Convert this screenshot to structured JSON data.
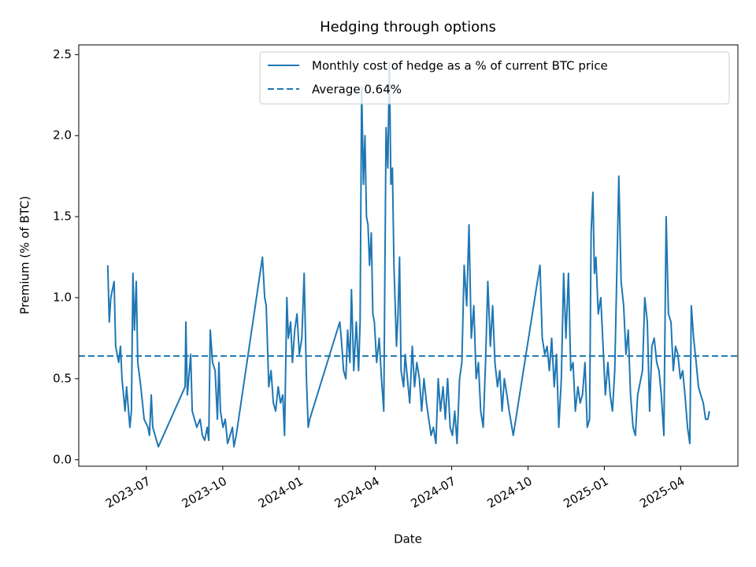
{
  "chart_data": {
    "type": "line",
    "title": "Hedging through options",
    "xlabel": "Date",
    "ylabel": "Premium (% of BTC)",
    "xlim": [
      -2.66,
      23.25
    ],
    "ylim": [
      -0.04,
      2.56
    ],
    "xticks": [
      {
        "value": 0,
        "label": "2023-07"
      },
      {
        "value": 3,
        "label": "2023-10"
      },
      {
        "value": 6,
        "label": "2024-01"
      },
      {
        "value": 9,
        "label": "2024-04"
      },
      {
        "value": 12,
        "label": "2024-07"
      },
      {
        "value": 15,
        "label": "2024-10"
      },
      {
        "value": 18,
        "label": "2025-01"
      },
      {
        "value": 21,
        "label": "2025-04"
      }
    ],
    "yticks": [
      {
        "value": 0,
        "label": "0.0"
      },
      0.5,
      {
        "value": 1,
        "label": "1.0"
      },
      1.5,
      {
        "value": 2,
        "label": "2.0"
      },
      2.5
    ],
    "legend": "upper right",
    "grid": false,
    "x": [
      -1.52,
      -1.46,
      -1.4,
      -1.27,
      -1.21,
      -1.09,
      -1.02,
      -0.96,
      -0.84,
      -0.78,
      -0.65,
      -0.59,
      -0.53,
      -0.47,
      -0.4,
      -0.34,
      -0.22,
      -0.09,
      0.06,
      0.12,
      0.19,
      0.25,
      0.47,
      1.52,
      1.55,
      1.61,
      1.74,
      1.8,
      1.98,
      2.11,
      2.2,
      2.29,
      2.39,
      2.45,
      2.51,
      2.6,
      2.7,
      2.79,
      2.85,
      2.91,
      3.01,
      3.1,
      3.19,
      3.29,
      3.38,
      3.44,
      3.53,
      4.56,
      4.65,
      4.71,
      4.81,
      4.9,
      4.99,
      5.08,
      5.18,
      5.27,
      5.36,
      5.43,
      5.52,
      5.58,
      5.67,
      5.74,
      5.83,
      5.92,
      6.01,
      6.11,
      6.2,
      6.29,
      6.36,
      6.42,
      7.6,
      7.66,
      7.75,
      7.84,
      7.91,
      8.0,
      8.06,
      8.15,
      8.25,
      8.34,
      8.4,
      8.46,
      8.53,
      8.59,
      8.65,
      8.71,
      8.77,
      8.84,
      8.9,
      8.96,
      9.05,
      9.15,
      9.24,
      9.33,
      9.42,
      9.49,
      9.55,
      9.61,
      9.67,
      9.73,
      9.83,
      9.89,
      9.95,
      10.01,
      10.11,
      10.17,
      10.26,
      10.35,
      10.45,
      10.54,
      10.63,
      10.73,
      10.82,
      10.91,
      11.01,
      11.1,
      11.19,
      11.28,
      11.38,
      11.47,
      11.56,
      11.66,
      11.75,
      11.84,
      11.94,
      12.03,
      12.12,
      12.21,
      12.31,
      12.4,
      12.49,
      12.59,
      12.68,
      12.77,
      12.87,
      12.96,
      13.05,
      13.14,
      13.24,
      13.33,
      13.42,
      13.52,
      13.61,
      13.7,
      13.8,
      13.89,
      13.98,
      14.07,
      14.17,
      14.26,
      14.42,
      15.47,
      15.56,
      15.66,
      15.75,
      15.84,
      15.93,
      16.03,
      16.12,
      16.21,
      16.31,
      16.4,
      16.49,
      16.59,
      16.68,
      16.77,
      16.86,
      16.96,
      17.05,
      17.14,
      17.24,
      17.33,
      17.42,
      17.48,
      17.55,
      17.61,
      17.67,
      17.76,
      17.86,
      17.95,
      18.04,
      18.14,
      18.23,
      18.32,
      18.41,
      18.51,
      18.57,
      18.66,
      18.76,
      18.85,
      18.94,
      19.03,
      19.13,
      19.22,
      19.31,
      19.5,
      19.59,
      19.69,
      19.78,
      19.87,
      19.96,
      20.06,
      20.15,
      20.24,
      20.34,
      20.43,
      20.52,
      20.62,
      20.71,
      20.8,
      20.89,
      20.99,
      21.08,
      21.17,
      21.27,
      21.36,
      21.42,
      21.51,
      21.61,
      21.7,
      21.79,
      21.89,
      21.98,
      22.07,
      22.13
    ],
    "series": [
      {
        "name": "Monthly cost of hedge as a % of current BTC price",
        "color": "#1f77b4",
        "linestyle": "solid",
        "values": [
          1.2,
          0.85,
          1.0,
          1.1,
          0.7,
          0.6,
          0.7,
          0.5,
          0.3,
          0.45,
          0.2,
          0.3,
          1.15,
          0.8,
          1.1,
          0.6,
          0.45,
          0.25,
          0.2,
          0.15,
          0.4,
          0.2,
          0.08,
          0.45,
          0.85,
          0.4,
          0.65,
          0.3,
          0.2,
          0.25,
          0.15,
          0.12,
          0.2,
          0.12,
          0.8,
          0.6,
          0.55,
          0.25,
          0.6,
          0.3,
          0.2,
          0.25,
          0.1,
          0.15,
          0.2,
          0.08,
          0.15,
          1.25,
          1.0,
          0.95,
          0.45,
          0.55,
          0.35,
          0.3,
          0.45,
          0.35,
          0.4,
          0.15,
          1.0,
          0.75,
          0.85,
          0.6,
          0.8,
          0.9,
          0.65,
          0.75,
          1.15,
          0.5,
          0.2,
          0.25,
          0.85,
          0.75,
          0.55,
          0.5,
          0.8,
          0.6,
          1.05,
          0.55,
          0.85,
          0.55,
          0.85,
          2.3,
          1.7,
          2.0,
          1.5,
          1.45,
          1.2,
          1.4,
          0.9,
          0.85,
          0.6,
          0.75,
          0.5,
          0.3,
          2.05,
          1.8,
          2.45,
          1.7,
          1.8,
          1.2,
          0.7,
          0.9,
          1.25,
          0.55,
          0.45,
          0.65,
          0.5,
          0.35,
          0.7,
          0.45,
          0.6,
          0.5,
          0.3,
          0.5,
          0.35,
          0.25,
          0.15,
          0.2,
          0.1,
          0.5,
          0.3,
          0.45,
          0.25,
          0.5,
          0.2,
          0.15,
          0.3,
          0.1,
          0.5,
          0.6,
          1.2,
          0.95,
          1.45,
          0.75,
          0.95,
          0.5,
          0.6,
          0.3,
          0.2,
          0.6,
          1.1,
          0.7,
          0.95,
          0.6,
          0.45,
          0.55,
          0.3,
          0.5,
          0.4,
          0.3,
          0.15,
          1.2,
          0.75,
          0.65,
          0.7,
          0.55,
          0.75,
          0.45,
          0.65,
          0.2,
          0.5,
          1.15,
          0.75,
          1.15,
          0.55,
          0.6,
          0.3,
          0.45,
          0.35,
          0.4,
          0.6,
          0.2,
          0.25,
          1.4,
          1.65,
          1.15,
          1.25,
          0.9,
          1.0,
          0.7,
          0.4,
          0.6,
          0.4,
          0.3,
          0.55,
          1.3,
          1.75,
          1.1,
          0.95,
          0.65,
          0.8,
          0.4,
          0.2,
          0.15,
          0.4,
          0.55,
          1.0,
          0.85,
          0.3,
          0.7,
          0.75,
          0.6,
          0.55,
          0.4,
          0.15,
          1.5,
          0.9,
          0.85,
          0.55,
          0.7,
          0.65,
          0.5,
          0.55,
          0.4,
          0.2,
          0.1,
          0.95,
          0.75,
          0.6,
          0.45,
          0.4,
          0.35,
          0.25,
          0.25,
          0.3
        ]
      },
      {
        "name": "Average 0.64%",
        "color": "#1f77b4",
        "linestyle": "dashed",
        "value": 0.64
      }
    ]
  }
}
